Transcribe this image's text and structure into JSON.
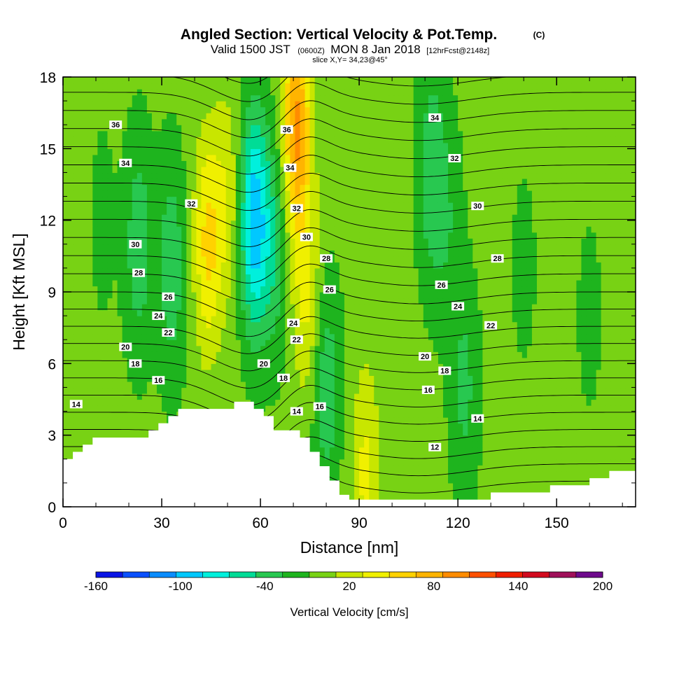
{
  "title": {
    "main": "Angled Section: Vertical Velocity & Pot.Temp.",
    "main_unit": "(C)",
    "valid_prefix": "Valid 1500 JST",
    "valid_z": "(0600Z)",
    "valid_date": "MON 8 Jan 2018",
    "forecast": "[12hrFcst@2148z]",
    "slice": "slice X,Y= 34,23@45°"
  },
  "chart_data": {
    "type": "heatmap",
    "xlabel": "Distance [nm]",
    "ylabel": "Height [Kft MSL]",
    "xlim": [
      0,
      174
    ],
    "ylim": [
      0,
      18
    ],
    "xticks": [
      0,
      30,
      60,
      90,
      120,
      150
    ],
    "yticks": [
      0,
      3,
      6,
      9,
      12,
      15,
      18
    ],
    "colorbar": {
      "title": "Vertical Velocity [cm/s]",
      "min": -160,
      "max": 200,
      "step": 20,
      "tick_labels": [
        -160,
        -100,
        -40,
        20,
        80,
        140,
        200
      ],
      "colors": [
        "#0a14e6",
        "#0a50ff",
        "#0a8cff",
        "#00c8ff",
        "#00f0dc",
        "#00dc96",
        "#28c850",
        "#1eb41e",
        "#78d214",
        "#c8e600",
        "#f0f000",
        "#ffd200",
        "#ffb400",
        "#ff8c00",
        "#ff5000",
        "#f01e00",
        "#d20a1e",
        "#a0105a",
        "#6e0a8c"
      ]
    },
    "velocity_features": [
      {
        "x": 12,
        "z": 12,
        "value": -10
      },
      {
        "x": 23,
        "z": 11,
        "value": -40
      },
      {
        "x": 33,
        "z": 10,
        "value": -40
      },
      {
        "x": 44,
        "z": 11,
        "value": 60
      },
      {
        "x": 50,
        "z": 13,
        "value": 30
      },
      {
        "x": 58,
        "z": 12,
        "value": -100
      },
      {
        "x": 64,
        "z": 11,
        "value": -40
      },
      {
        "x": 71,
        "z": 16,
        "value": 100
      },
      {
        "x": 74,
        "z": 9,
        "value": 40
      },
      {
        "x": 80,
        "z": 5,
        "value": -40
      },
      {
        "x": 92,
        "z": 1.5,
        "value": 40
      },
      {
        "x": 112,
        "z": 14,
        "value": -40
      },
      {
        "x": 117,
        "z": 12,
        "value": -20
      },
      {
        "x": 122,
        "z": 5,
        "value": -30
      },
      {
        "x": 140,
        "z": 10,
        "value": -10
      },
      {
        "x": 160,
        "z": 8,
        "value": -10
      }
    ],
    "theta_contours": {
      "min": 12,
      "max": 37,
      "step": 1,
      "labels": [
        {
          "value": 36,
          "x": 16,
          "z": 16
        },
        {
          "value": 34,
          "x": 19,
          "z": 14.4
        },
        {
          "value": 32,
          "x": 39,
          "z": 12.7
        },
        {
          "value": 30,
          "x": 22,
          "z": 11
        },
        {
          "value": 28,
          "x": 23,
          "z": 9.8
        },
        {
          "value": 26,
          "x": 32,
          "z": 8.8
        },
        {
          "value": 24,
          "x": 29,
          "z": 8
        },
        {
          "value": 22,
          "x": 32,
          "z": 7.3
        },
        {
          "value": 20,
          "x": 19,
          "z": 6.7
        },
        {
          "value": 18,
          "x": 22,
          "z": 6
        },
        {
          "value": 16,
          "x": 29,
          "z": 5.3
        },
        {
          "value": 14,
          "x": 4,
          "z": 4.3
        },
        {
          "value": 36,
          "x": 68,
          "z": 15.8
        },
        {
          "value": 34,
          "x": 69,
          "z": 14.2
        },
        {
          "value": 32,
          "x": 71,
          "z": 12.5
        },
        {
          "value": 30,
          "x": 74,
          "z": 11.3
        },
        {
          "value": 28,
          "x": 80,
          "z": 10.4
        },
        {
          "value": 26,
          "x": 81,
          "z": 9.1
        },
        {
          "value": 24,
          "x": 70,
          "z": 7.7
        },
        {
          "value": 22,
          "x": 71,
          "z": 7
        },
        {
          "value": 20,
          "x": 61,
          "z": 6
        },
        {
          "value": 18,
          "x": 67,
          "z": 5.4
        },
        {
          "value": 16,
          "x": 78,
          "z": 4.2
        },
        {
          "value": 14,
          "x": 71,
          "z": 4
        },
        {
          "value": 34,
          "x": 113,
          "z": 16.3
        },
        {
          "value": 32,
          "x": 119,
          "z": 14.6
        },
        {
          "value": 30,
          "x": 126,
          "z": 12.6
        },
        {
          "value": 28,
          "x": 132,
          "z": 10.4
        },
        {
          "value": 26,
          "x": 115,
          "z": 9.3
        },
        {
          "value": 24,
          "x": 120,
          "z": 8.4
        },
        {
          "value": 22,
          "x": 130,
          "z": 7.6
        },
        {
          "value": 20,
          "x": 110,
          "z": 6.3
        },
        {
          "value": 18,
          "x": 116,
          "z": 5.7
        },
        {
          "value": 16,
          "x": 111,
          "z": 4.9
        },
        {
          "value": 14,
          "x": 126,
          "z": 3.7
        },
        {
          "value": 12,
          "x": 113,
          "z": 2.5
        }
      ]
    },
    "terrain": [
      [
        0,
        2
      ],
      [
        3,
        2
      ],
      [
        3,
        2.3
      ],
      [
        6,
        2.3
      ],
      [
        6,
        2.6
      ],
      [
        9,
        2.6
      ],
      [
        9,
        2.9
      ],
      [
        26,
        2.9
      ],
      [
        26,
        3.2
      ],
      [
        29,
        3.2
      ],
      [
        29,
        3.5
      ],
      [
        32,
        3.5
      ],
      [
        32,
        3.8
      ],
      [
        35,
        3.8
      ],
      [
        35,
        4.1
      ],
      [
        52,
        4.1
      ],
      [
        52,
        4.4
      ],
      [
        58,
        4.4
      ],
      [
        58,
        4.1
      ],
      [
        61,
        4.1
      ],
      [
        61,
        3.8
      ],
      [
        64,
        3.8
      ],
      [
        64,
        3.2
      ],
      [
        72,
        3.2
      ],
      [
        72,
        2.9
      ],
      [
        75,
        2.9
      ],
      [
        75,
        2.3
      ],
      [
        78,
        2.3
      ],
      [
        78,
        1.7
      ],
      [
        81,
        1.7
      ],
      [
        81,
        1.1
      ],
      [
        84,
        1.1
      ],
      [
        84,
        0.5
      ],
      [
        87,
        0.5
      ],
      [
        87,
        0.3
      ],
      [
        130,
        0.3
      ],
      [
        130,
        0.6
      ],
      [
        148,
        0.6
      ],
      [
        148,
        0.9
      ],
      [
        160,
        0.9
      ],
      [
        160,
        1.2
      ],
      [
        166,
        1.2
      ],
      [
        166,
        1.5
      ],
      [
        174,
        1.5
      ]
    ]
  }
}
